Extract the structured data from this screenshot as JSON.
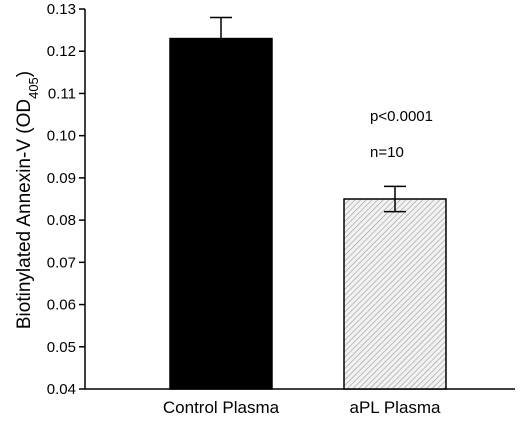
{
  "chart_data": {
    "type": "bar",
    "title": "",
    "xlabel": "",
    "ylabel": "Biotinylated Annexin-V (OD",
    "ylabel_sub": "405",
    "ylabel_close": ")",
    "categories": [
      "Control Plasma",
      "aPL Plasma"
    ],
    "values": [
      0.123,
      0.085
    ],
    "errors": [
      0.005,
      0.003
    ],
    "bar_colors": [
      "#000000",
      "#e8e8e8"
    ],
    "bar_patterns": [
      "solid",
      "hatched"
    ],
    "ylim": [
      0.04,
      0.13
    ],
    "yticks": [
      "0.04",
      "0.05",
      "0.06",
      "0.07",
      "0.08",
      "0.09",
      "0.10",
      "0.11",
      "0.12",
      "0.13"
    ],
    "grid": false,
    "annotations": [
      "p<0.0001",
      "n=10"
    ]
  }
}
